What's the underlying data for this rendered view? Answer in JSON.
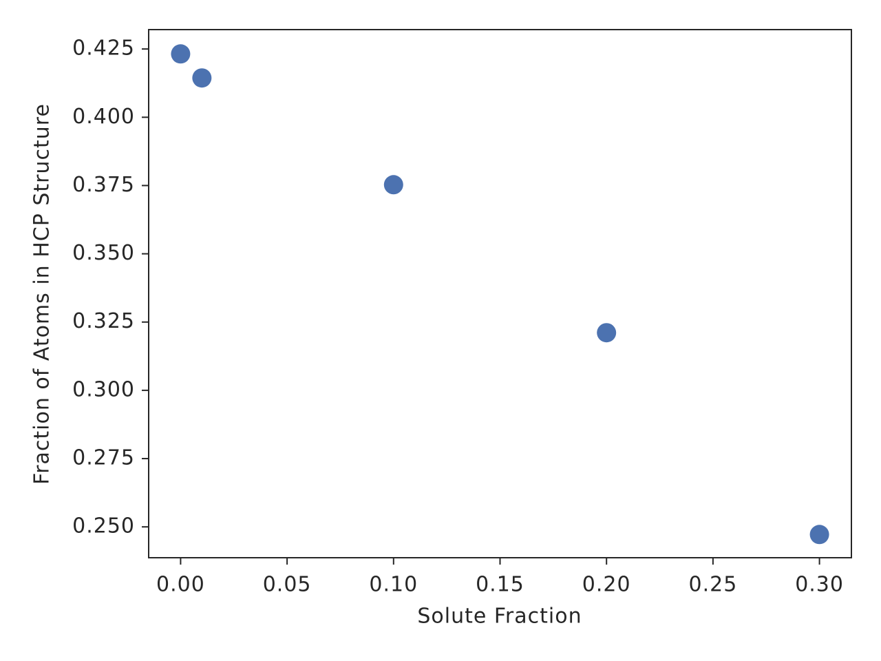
{
  "chart_data": {
    "type": "scatter",
    "x_label": "Solute Fraction",
    "y_label": "Fraction of Atoms in HCP Structure",
    "x": [
      0,
      0.01,
      0.1,
      0.2,
      0.3
    ],
    "values": [
      0.4232,
      0.4144,
      0.3753,
      0.3211,
      0.2472
    ],
    "color": "#4c72b0",
    "xlim": [
      -0.015,
      0.315
    ],
    "ylim": [
      0.2387,
      0.4321
    ],
    "xticks": [
      {
        "value": 0,
        "label": "0.00"
      },
      0.05,
      {
        "value": 0.1,
        "label": "0.10"
      },
      0.15,
      {
        "value": 0.2,
        "label": "0.20"
      },
      0.25,
      {
        "value": 0.3,
        "label": "0.30"
      }
    ],
    "yticks": [
      {
        "value": 0.25,
        "label": "0.250"
      },
      0.275,
      {
        "value": 0.3,
        "label": "0.300"
      },
      0.325,
      {
        "value": 0.35,
        "label": "0.350"
      },
      0.375,
      {
        "value": 0.4,
        "label": "0.400"
      },
      0.425
    ]
  }
}
